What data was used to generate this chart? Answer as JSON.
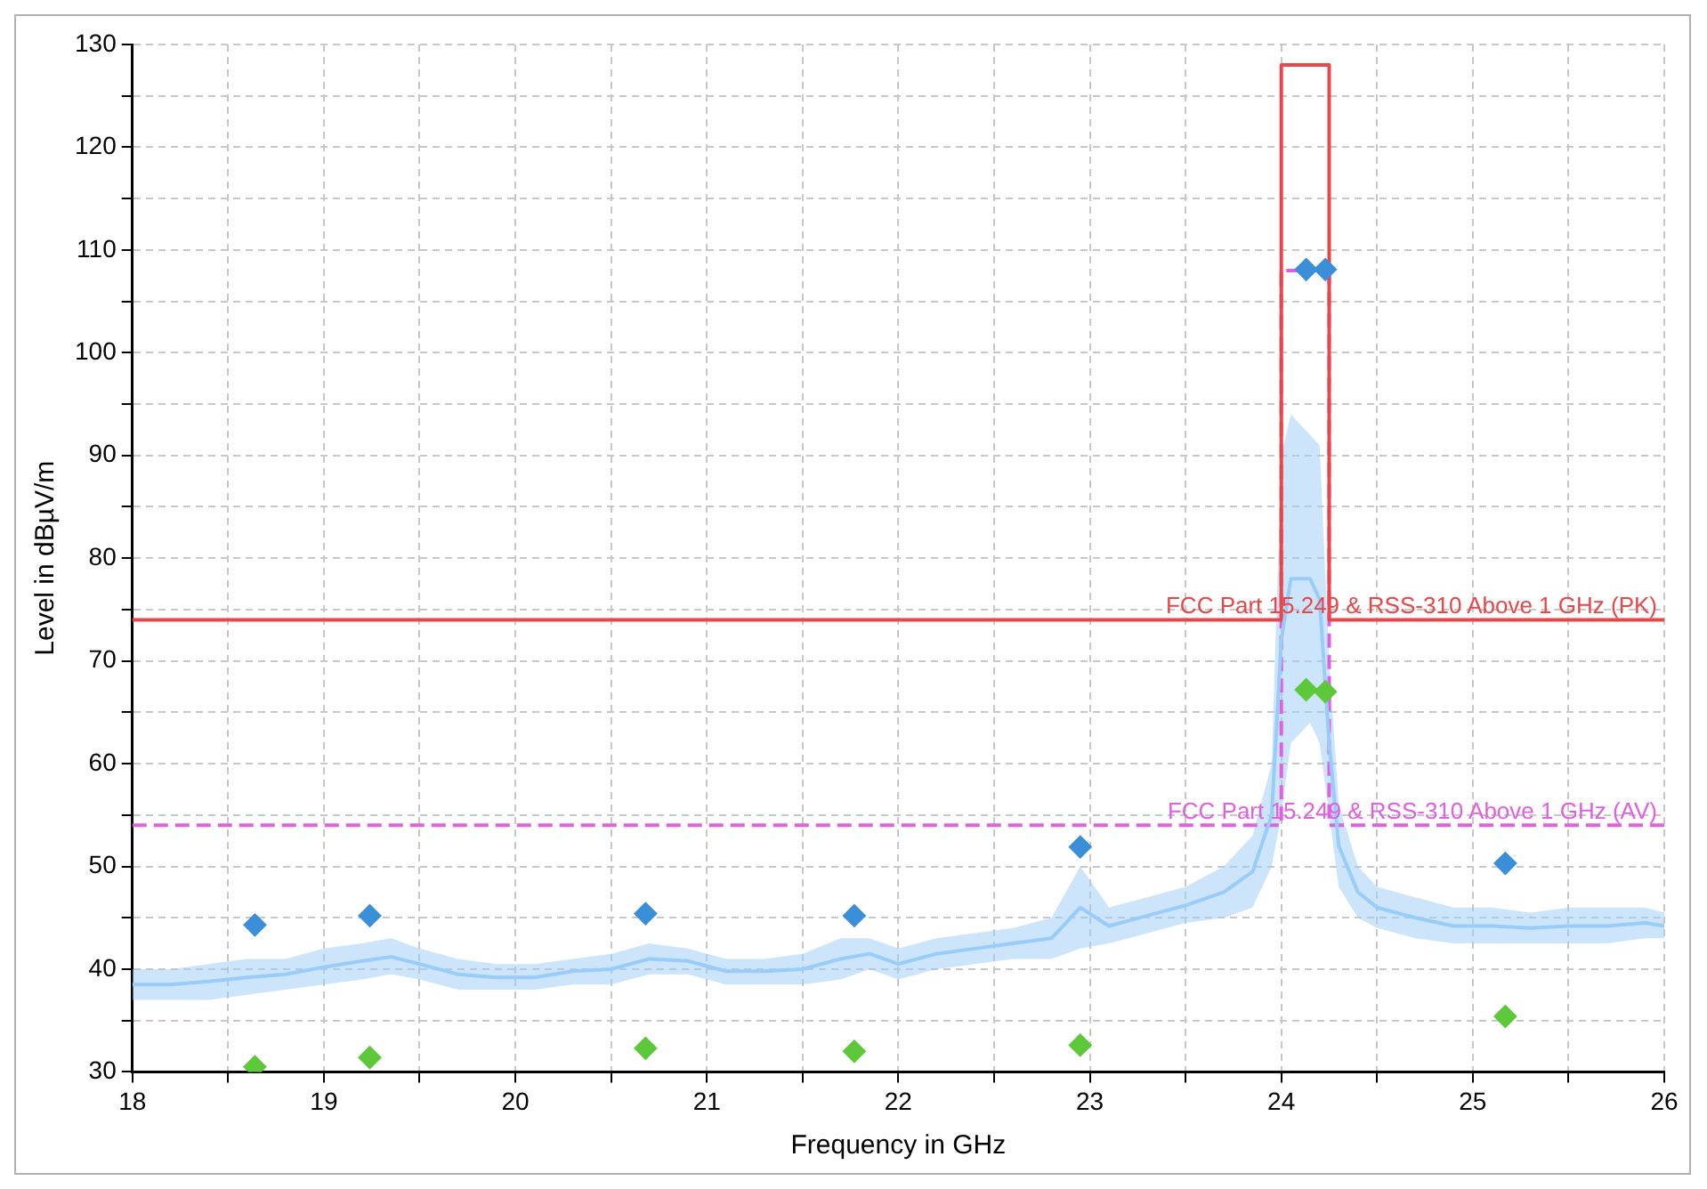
{
  "chart_data": {
    "type": "line",
    "xlabel": "Frequency in GHz",
    "ylabel": "Level in dBµV/m",
    "xlim": [
      18,
      26
    ],
    "xticks": [
      18,
      {
        "value": 18.5,
        "label": null
      },
      19,
      {
        "value": 19.5,
        "label": null
      },
      20,
      {
        "value": 20.5,
        "label": null
      },
      21,
      {
        "value": 21.5,
        "label": null
      },
      22,
      {
        "value": 22.5,
        "label": null
      },
      23,
      {
        "value": 23.5,
        "label": null
      },
      24,
      {
        "value": 24.5,
        "label": null
      },
      25,
      {
        "value": 25.5,
        "label": null
      },
      26
    ],
    "ylim": [
      30,
      130
    ],
    "yticks": [
      30,
      {
        "value": 35,
        "label": null
      },
      40,
      {
        "value": 45,
        "label": null
      },
      50,
      {
        "value": 55,
        "label": null
      },
      60,
      {
        "value": 65,
        "label": null
      },
      70,
      {
        "value": 75,
        "label": null
      },
      80,
      {
        "value": 85,
        "label": null
      },
      90,
      {
        "value": 95,
        "label": null
      },
      100,
      {
        "value": 105,
        "label": null
      },
      110,
      {
        "value": 115,
        "label": null
      },
      120,
      {
        "value": 125,
        "label": null
      },
      130
    ],
    "grid": true,
    "legend": false,
    "marker": "none",
    "line_style": "solid",
    "series": [
      {
        "color": "#99ccf8",
        "x": [
          18,
          18.2,
          18.4,
          18.6,
          18.8,
          19.0,
          19.2,
          19.35,
          19.5,
          19.7,
          19.9,
          20.1,
          20.3,
          20.5,
          20.7,
          20.9,
          21.1,
          21.3,
          21.5,
          21.7,
          21.85,
          22.0,
          22.2,
          22.4,
          22.6,
          22.8,
          22.95,
          23.1,
          23.3,
          23.5,
          23.7,
          23.85,
          23.95,
          24.0,
          24.05,
          24.1,
          24.15,
          24.2,
          24.25,
          24.3,
          24.4,
          24.5,
          24.7,
          24.9,
          25.1,
          25.3,
          25.5,
          25.7,
          25.9,
          26
        ],
        "values": [
          38.5,
          38.5,
          38.8,
          39.2,
          39.5,
          40.2,
          40.8,
          41.2,
          40.5,
          39.5,
          39.2,
          39.2,
          39.8,
          40,
          41,
          40.8,
          39.8,
          39.8,
          40,
          41,
          41.5,
          40.5,
          41.5,
          42,
          42.5,
          43,
          46,
          44.2,
          45.2,
          46.2,
          47.5,
          49.5,
          55,
          72,
          78,
          78,
          78,
          76,
          62,
          52,
          47.5,
          46,
          45,
          44.2,
          44.2,
          44,
          44.2,
          44.2,
          44.5,
          44.2
        ],
        "lower": [
          37,
          37,
          37,
          37.5,
          38,
          38.5,
          39,
          39.5,
          39,
          38,
          38,
          38,
          38.5,
          38.5,
          39.5,
          39.5,
          38.5,
          38.5,
          38.5,
          39,
          40,
          39,
          40,
          40.5,
          41,
          41,
          42,
          42.5,
          43.5,
          44.5,
          45,
          46,
          50,
          55,
          62,
          63,
          64,
          62,
          55,
          48,
          45,
          44,
          43,
          42.5,
          42.5,
          42.5,
          42.5,
          42.5,
          43,
          43
        ],
        "upper": [
          40,
          40,
          40.5,
          41,
          41,
          42,
          42.5,
          43,
          42,
          41,
          40.5,
          40.5,
          41,
          41.5,
          42.5,
          42,
          41,
          41,
          41.5,
          43,
          43,
          42,
          43,
          43.5,
          44,
          45,
          50,
          46,
          47,
          48,
          50,
          53,
          60,
          90,
          94,
          93,
          92,
          91,
          70,
          56,
          50,
          48,
          47,
          46,
          46,
          45.5,
          46,
          46,
          46,
          45.5
        ]
      },
      {
        "color": "#e8474a",
        "x": [
          18,
          24.0,
          24.0,
          24.25,
          24.25,
          26
        ],
        "values": [
          74,
          74,
          128,
          128,
          74,
          74
        ]
      },
      {
        "color": "#e060e0",
        "line_style": "dashed",
        "x": [
          18,
          24.0,
          24.0,
          24.25,
          24.25,
          26
        ],
        "values": [
          54,
          54,
          108,
          108,
          54,
          54
        ]
      },
      {
        "type": "scatter",
        "marker": "diamond",
        "color": "#3a8fd8",
        "x": [
          18.64,
          19.24,
          20.68,
          21.77,
          22.95,
          24.13,
          24.23,
          25.17
        ],
        "values": [
          44.3,
          45.2,
          45.4,
          45.2,
          51.9,
          108.1,
          108.1,
          50.3
        ]
      },
      {
        "type": "scatter",
        "marker": "diamond",
        "color": "#5cc83a",
        "x": [
          18.64,
          19.24,
          20.68,
          21.77,
          22.95,
          24.13,
          24.23,
          25.17
        ],
        "values": [
          30.5,
          31.4,
          32.3,
          32,
          32.6,
          67.2,
          67,
          35.4
        ]
      }
    ],
    "annotations": [
      {
        "text": "FCC Part 15.249 & RSS-310 Above 1 GHz (PK)",
        "x": 26,
        "y": 74
      },
      {
        "text": "FCC Part 15.249 & RSS-310 Above 1 GHz (AV)",
        "x": 26,
        "y": 54
      }
    ]
  }
}
